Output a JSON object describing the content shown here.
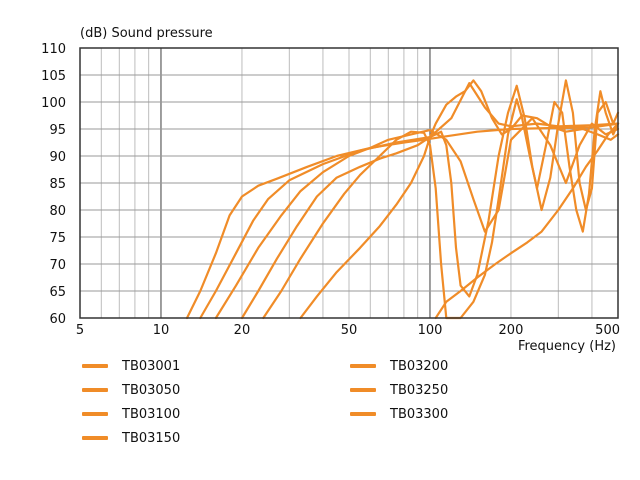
{
  "chart_data": {
    "type": "line",
    "title": "",
    "ylabel": "(dB)  Sound pressure",
    "xlabel": "Frequency  (Hz)",
    "x_scale": "log",
    "xlim": [
      5,
      500
    ],
    "ylim": [
      60,
      110
    ],
    "x_ticks": [
      5,
      10,
      20,
      50,
      100,
      200,
      500
    ],
    "y_ticks": [
      60,
      65,
      70,
      75,
      80,
      85,
      90,
      95,
      100,
      105,
      110
    ],
    "grid": true,
    "legend_position": "bottom-left",
    "line_color": "#F08C28",
    "series": [
      {
        "name": "TB03001",
        "points": [
          [
            12.5,
            60
          ],
          [
            14,
            65
          ],
          [
            16,
            72
          ],
          [
            18,
            79
          ],
          [
            20,
            82.5
          ],
          [
            23,
            84.5
          ],
          [
            27,
            85.8
          ],
          [
            35,
            88
          ],
          [
            45,
            90
          ],
          [
            60,
            91.5
          ],
          [
            80,
            92.5
          ],
          [
            95,
            93
          ],
          [
            110,
            93.5
          ],
          [
            150,
            94.5
          ],
          [
            200,
            95
          ],
          [
            300,
            95.2
          ],
          [
            400,
            95.3
          ],
          [
            500,
            96
          ]
        ]
      },
      {
        "name": "TB03050",
        "points": [
          [
            14,
            60
          ],
          [
            16,
            65
          ],
          [
            19,
            72
          ],
          [
            22,
            78
          ],
          [
            25,
            82
          ],
          [
            30,
            85.5
          ],
          [
            40,
            88.5
          ],
          [
            55,
            91
          ],
          [
            75,
            92.5
          ],
          [
            100,
            93.5
          ],
          [
            120,
            97
          ],
          [
            140,
            103.5
          ],
          [
            160,
            99
          ],
          [
            180,
            96
          ],
          [
            200,
            95.5
          ],
          [
            250,
            96
          ],
          [
            300,
            95.5
          ],
          [
            400,
            95.7
          ],
          [
            500,
            96
          ]
        ]
      },
      {
        "name": "TB03100",
        "points": [
          [
            16,
            60
          ],
          [
            19,
            66
          ],
          [
            23,
            73
          ],
          [
            28,
            79
          ],
          [
            33,
            83.5
          ],
          [
            40,
            87
          ],
          [
            50,
            90
          ],
          [
            60,
            91.5
          ],
          [
            70,
            93
          ],
          [
            85,
            94
          ],
          [
            100,
            94.8
          ],
          [
            115,
            93
          ],
          [
            130,
            89
          ],
          [
            145,
            82
          ],
          [
            160,
            76
          ],
          [
            180,
            80
          ],
          [
            200,
            93
          ],
          [
            240,
            97
          ],
          [
            280,
            92
          ],
          [
            320,
            85
          ],
          [
            360,
            92
          ],
          [
            400,
            96
          ],
          [
            450,
            94
          ],
          [
            500,
            95
          ]
        ]
      },
      {
        "name": "TB03150",
        "points": [
          [
            20,
            60
          ],
          [
            23,
            65
          ],
          [
            27,
            71
          ],
          [
            32,
            77
          ],
          [
            38,
            82.5
          ],
          [
            45,
            86
          ],
          [
            55,
            88
          ],
          [
            65,
            89.5
          ],
          [
            75,
            90.5
          ],
          [
            90,
            92
          ],
          [
            100,
            93.5
          ],
          [
            110,
            94.5
          ],
          [
            115,
            92
          ],
          [
            120,
            85
          ],
          [
            125,
            73
          ],
          [
            130,
            66
          ],
          [
            140,
            64
          ],
          [
            150,
            68
          ],
          [
            165,
            78
          ],
          [
            180,
            90
          ],
          [
            195,
            98
          ],
          [
            210,
            103
          ],
          [
            225,
            97
          ],
          [
            240,
            88
          ],
          [
            260,
            80
          ],
          [
            280,
            86
          ],
          [
            300,
            96
          ],
          [
            320,
            104
          ],
          [
            340,
            98
          ],
          [
            360,
            85
          ],
          [
            380,
            80
          ],
          [
            400,
            84
          ],
          [
            420,
            98
          ],
          [
            450,
            100
          ],
          [
            480,
            96
          ],
          [
            500,
            98
          ]
        ]
      },
      {
        "name": "TB03200",
        "points": [
          [
            24,
            60
          ],
          [
            28,
            65
          ],
          [
            33,
            71
          ],
          [
            40,
            77.5
          ],
          [
            48,
            83
          ],
          [
            55,
            86.5
          ],
          [
            65,
            90
          ],
          [
            75,
            93
          ],
          [
            85,
            94.5
          ],
          [
            95,
            94.3
          ],
          [
            100,
            92
          ],
          [
            105,
            84
          ],
          [
            110,
            70
          ],
          [
            115,
            60
          ],
          [
            130,
            60
          ],
          [
            145,
            63
          ],
          [
            160,
            68
          ],
          [
            170,
            74
          ],
          [
            180,
            82
          ],
          [
            195,
            94
          ],
          [
            210,
            100.5
          ],
          [
            220,
            97
          ],
          [
            235,
            90
          ],
          [
            250,
            84
          ],
          [
            270,
            92
          ],
          [
            290,
            100
          ],
          [
            310,
            98
          ],
          [
            330,
            88
          ],
          [
            350,
            80
          ],
          [
            370,
            76
          ],
          [
            390,
            83
          ],
          [
            410,
            95
          ],
          [
            430,
            102
          ],
          [
            450,
            98
          ],
          [
            480,
            94
          ],
          [
            500,
            96
          ]
        ]
      },
      {
        "name": "TB03250",
        "points": [
          [
            33,
            60
          ],
          [
            38,
            64
          ],
          [
            45,
            68.5
          ],
          [
            55,
            73
          ],
          [
            65,
            77
          ],
          [
            75,
            81
          ],
          [
            85,
            85
          ],
          [
            95,
            90
          ],
          [
            100,
            93.5
          ],
          [
            105,
            96
          ],
          [
            115,
            99.5
          ],
          [
            125,
            101
          ],
          [
            135,
            102
          ],
          [
            145,
            104
          ],
          [
            155,
            102
          ],
          [
            170,
            97
          ],
          [
            185,
            94
          ],
          [
            200,
            95
          ],
          [
            220,
            97.5
          ],
          [
            250,
            97
          ],
          [
            280,
            95.5
          ],
          [
            320,
            94.5
          ],
          [
            370,
            95
          ],
          [
            420,
            94
          ],
          [
            470,
            93
          ],
          [
            500,
            94
          ]
        ]
      },
      {
        "name": "TB03300",
        "points": [
          [
            105,
            60
          ],
          [
            115,
            63
          ],
          [
            130,
            65
          ],
          [
            150,
            67.5
          ],
          [
            175,
            70
          ],
          [
            200,
            72
          ],
          [
            230,
            74
          ],
          [
            260,
            76
          ],
          [
            300,
            80
          ],
          [
            340,
            84
          ],
          [
            380,
            88
          ],
          [
            420,
            91
          ],
          [
            460,
            94
          ],
          [
            500,
            96
          ]
        ]
      }
    ]
  }
}
